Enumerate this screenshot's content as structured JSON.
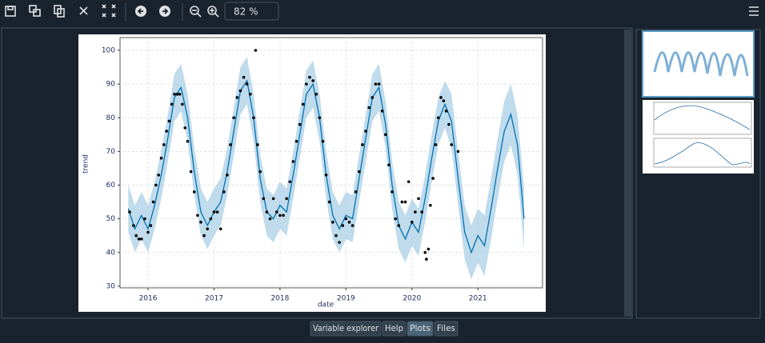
{
  "toolbar": {
    "zoom": "82 %"
  },
  "tabs": [
    "Variable explorer",
    "Help",
    "Plots",
    "Files"
  ],
  "chart_data": {
    "type": "line",
    "xlabel": "date",
    "ylabel": "trend",
    "xlim": [
      2015.575,
      2021.98
    ],
    "xticks": [
      2016,
      2017,
      2018,
      2019,
      2020,
      2021
    ],
    "ylim": [
      29.5,
      103.8
    ],
    "yticks": [
      30,
      40,
      50,
      60,
      70,
      80,
      90,
      100
    ],
    "grid": true,
    "x": [
      2015.7,
      2015.8,
      2015.9,
      2016.0,
      2016.1,
      2016.2,
      2016.3,
      2016.4,
      2016.5,
      2016.6,
      2016.7,
      2016.8,
      2016.9,
      2017.0,
      2017.1,
      2017.2,
      2017.3,
      2017.4,
      2017.5,
      2017.6,
      2017.7,
      2017.8,
      2017.9,
      2018.0,
      2018.1,
      2018.2,
      2018.3,
      2018.4,
      2018.5,
      2018.6,
      2018.7,
      2018.8,
      2018.9,
      2019.0,
      2019.1,
      2019.2,
      2019.3,
      2019.4,
      2019.5,
      2019.6,
      2019.7,
      2019.8,
      2019.9,
      2020.0,
      2020.1,
      2020.2,
      2020.3,
      2020.4,
      2020.5,
      2020.6,
      2020.7,
      2020.8,
      2020.9,
      2021.0,
      2021.1,
      2021.2,
      2021.3,
      2021.4,
      2021.5,
      2021.6,
      2021.7
    ],
    "series": [
      {
        "color": "#0072b2",
        "values": [
          53,
          47,
          51,
          47,
          54,
          63,
          74,
          86,
          89,
          80,
          64,
          52,
          48,
          52,
          55,
          64,
          76,
          88,
          91,
          80,
          62,
          52,
          50,
          54,
          52,
          63,
          75,
          87,
          90,
          80,
          63,
          51,
          47,
          51,
          50,
          62,
          74,
          86,
          89,
          78,
          60,
          48,
          44,
          49,
          46,
          56,
          68,
          79,
          84,
          79,
          62,
          46,
          40,
          45,
          42,
          53,
          65,
          76,
          81,
          72,
          50
        ]
      }
    ],
    "band": {
      "color": "#a9cfe6",
      "lower": [
        46,
        40,
        44,
        40,
        47,
        56,
        67,
        79,
        82,
        73,
        57,
        45,
        41,
        45,
        48,
        57,
        69,
        81,
        84,
        73,
        55,
        45,
        43,
        47,
        45,
        56,
        68,
        80,
        83,
        73,
        56,
        44,
        40,
        44,
        43,
        55,
        67,
        79,
        82,
        71,
        53,
        41,
        37,
        42,
        39,
        49,
        61,
        72,
        77,
        71,
        54,
        38,
        32,
        37,
        33,
        44,
        56,
        67,
        72,
        63,
        41
      ],
      "upper": [
        60,
        54,
        58,
        54,
        61,
        70,
        81,
        93,
        96,
        87,
        71,
        59,
        55,
        59,
        62,
        71,
        83,
        95,
        98,
        87,
        69,
        59,
        57,
        61,
        59,
        70,
        82,
        94,
        97,
        87,
        70,
        58,
        54,
        58,
        57,
        69,
        81,
        93,
        96,
        85,
        67,
        55,
        51,
        56,
        53,
        63,
        75,
        86,
        91,
        87,
        70,
        54,
        48,
        53,
        51,
        62,
        74,
        85,
        90,
        81,
        59
      ]
    },
    "points": {
      "color": "#000000",
      "x": [
        2015.72,
        2015.78,
        2015.82,
        2015.86,
        2015.9,
        2015.95,
        2016.0,
        2016.04,
        2016.08,
        2016.12,
        2016.16,
        2016.2,
        2016.24,
        2016.28,
        2016.32,
        2016.36,
        2016.4,
        2016.44,
        2016.48,
        2016.52,
        2016.56,
        2016.6,
        2016.65,
        2016.7,
        2016.75,
        2016.8,
        2016.85,
        2016.9,
        2016.95,
        2017.0,
        2017.05,
        2017.1,
        2017.15,
        2017.2,
        2017.25,
        2017.3,
        2017.35,
        2017.4,
        2017.45,
        2017.5,
        2017.55,
        2017.6,
        2017.63,
        2017.66,
        2017.7,
        2017.75,
        2017.8,
        2017.85,
        2017.9,
        2017.95,
        2018.0,
        2018.05,
        2018.1,
        2018.15,
        2018.2,
        2018.25,
        2018.3,
        2018.35,
        2018.4,
        2018.45,
        2018.5,
        2018.55,
        2018.6,
        2018.65,
        2018.7,
        2018.75,
        2018.8,
        2018.85,
        2018.9,
        2018.95,
        2019.0,
        2019.05,
        2019.1,
        2019.15,
        2019.2,
        2019.25,
        2019.3,
        2019.35,
        2019.4,
        2019.45,
        2019.5,
        2019.55,
        2019.6,
        2019.65,
        2019.7,
        2019.75,
        2019.8,
        2019.85,
        2019.9,
        2019.95,
        2020.0,
        2020.05,
        2020.1,
        2020.15,
        2020.2,
        2020.22,
        2020.25,
        2020.28,
        2020.32,
        2020.36,
        2020.4,
        2020.44,
        2020.48,
        2020.52,
        2020.56,
        2020.6,
        2020.7
      ],
      "values": [
        52,
        48,
        45,
        44,
        44,
        50,
        46,
        48,
        55,
        60,
        63,
        68,
        72,
        76,
        79,
        84,
        87,
        87,
        87,
        84,
        77,
        73,
        64,
        58,
        51,
        49,
        45,
        47,
        50,
        52,
        52,
        47,
        58,
        63,
        72,
        80,
        86,
        88,
        92,
        90,
        87,
        80,
        100,
        72,
        64,
        56,
        52,
        50,
        56,
        52,
        51,
        51,
        56,
        61,
        67,
        73,
        78,
        84,
        90,
        92,
        91,
        87,
        80,
        73,
        63,
        55,
        49,
        45,
        43,
        48,
        50,
        49,
        48,
        58,
        64,
        72,
        76,
        83,
        86,
        90,
        90,
        82,
        75,
        66,
        58,
        50,
        48,
        55,
        55,
        61,
        49,
        52,
        56,
        52,
        40,
        38,
        41,
        54,
        62,
        72,
        80,
        86,
        85,
        82,
        78,
        72,
        70
      ]
    }
  }
}
